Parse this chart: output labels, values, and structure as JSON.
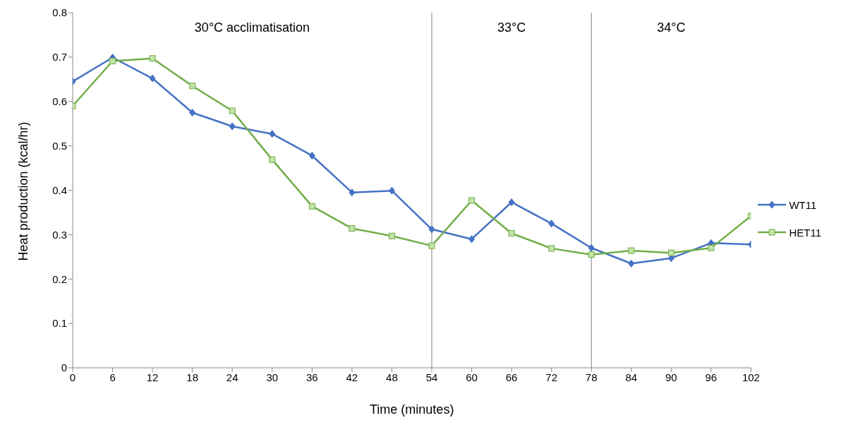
{
  "chart_data": {
    "type": "line",
    "xlabel": "Time (minutes)",
    "ylabel": "Heat production (kcal/hr)",
    "x": [
      0,
      6,
      12,
      18,
      24,
      30,
      36,
      42,
      48,
      54,
      60,
      66,
      72,
      78,
      84,
      90,
      96,
      102
    ],
    "series": [
      {
        "name": "WT11",
        "color": "#4472c4",
        "marker": "diamond",
        "values": [
          0.645,
          0.699,
          0.652,
          0.575,
          0.544,
          0.527,
          0.478,
          0.395,
          0.399,
          0.312,
          0.29,
          0.373,
          0.325,
          0.27,
          0.235,
          0.247,
          0.281,
          0.278
        ]
      },
      {
        "name": "HET11",
        "color": "#70ad47",
        "marker": "square",
        "values": [
          0.59,
          0.691,
          0.697,
          0.635,
          0.579,
          0.469,
          0.364,
          0.314,
          0.297,
          0.275,
          0.377,
          0.303,
          0.269,
          0.255,
          0.264,
          0.259,
          0.27,
          0.342
        ]
      }
    ],
    "xlim": [
      0,
      102
    ],
    "xticks": [
      0,
      6,
      12,
      18,
      24,
      30,
      36,
      42,
      48,
      54,
      60,
      66,
      72,
      78,
      84,
      90,
      96,
      102
    ],
    "ylim": [
      0,
      0.8
    ],
    "yticks": [
      0,
      0.1,
      0.2,
      0.3,
      0.4,
      0.5,
      0.6,
      0.7,
      0.8
    ],
    "ref_lines": [
      {
        "axis": "x",
        "value": 54,
        "color": "#808080"
      },
      {
        "axis": "x",
        "value": 78,
        "color": "#808080"
      }
    ],
    "annotations": [
      "30°C acclimatisation",
      "33°C",
      "34°C"
    ],
    "legend": "right",
    "line_style": "solid"
  }
}
